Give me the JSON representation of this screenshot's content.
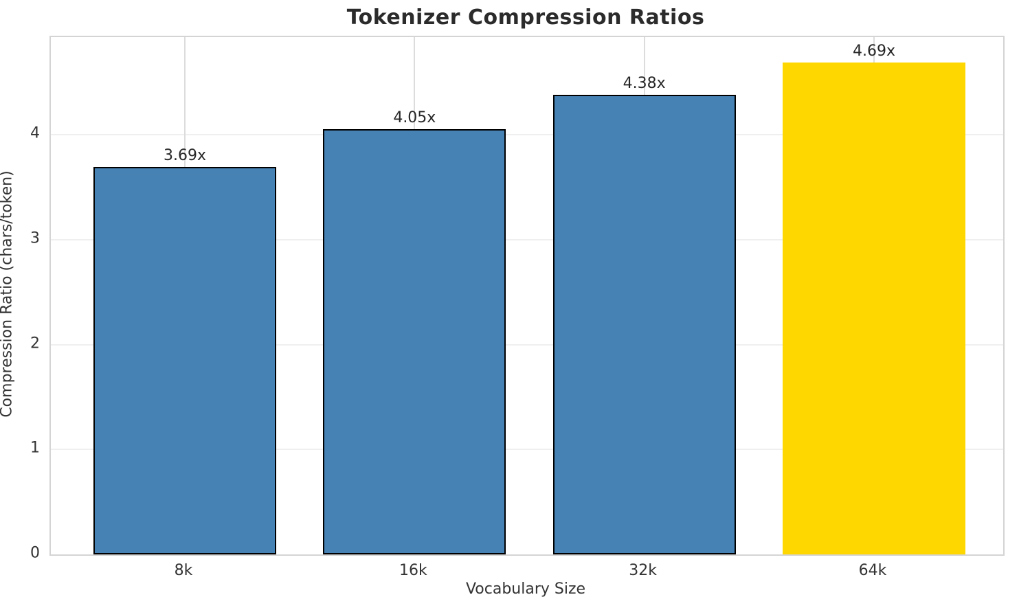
{
  "chart_data": {
    "type": "bar",
    "title": "Tokenizer Compression Ratios",
    "xlabel": "Vocabulary Size",
    "ylabel": "Compression Ratio (chars/token)",
    "categories": [
      "8k",
      "16k",
      "32k",
      "64k"
    ],
    "values": [
      3.69,
      4.05,
      4.38,
      4.69
    ],
    "bar_labels": [
      "3.69x",
      "4.05x",
      "4.38x",
      "4.69x"
    ],
    "bar_colors": [
      "#4682B4",
      "#4682B4",
      "#4682B4",
      "#FFD700"
    ],
    "bar_edge_colors": [
      "#000000",
      "#000000",
      "#000000",
      "none"
    ],
    "highlight_index": 3,
    "ylim": [
      0,
      4.93
    ],
    "yticks": [
      0,
      1,
      2,
      3,
      4
    ],
    "ytick_labels": [
      "0",
      "1",
      "2",
      "3",
      "4"
    ],
    "grid": true,
    "legend": "none",
    "colors": {
      "bar_primary": "#4682B4",
      "bar_highlight": "#FFD700",
      "bar_edge": "#000000",
      "grid_horizontal": "#efefef",
      "grid_vertical": "#dcdcdc",
      "spine": "#d4d4d4",
      "title_text": "#2b2b2b",
      "label_text": "#333333"
    }
  }
}
